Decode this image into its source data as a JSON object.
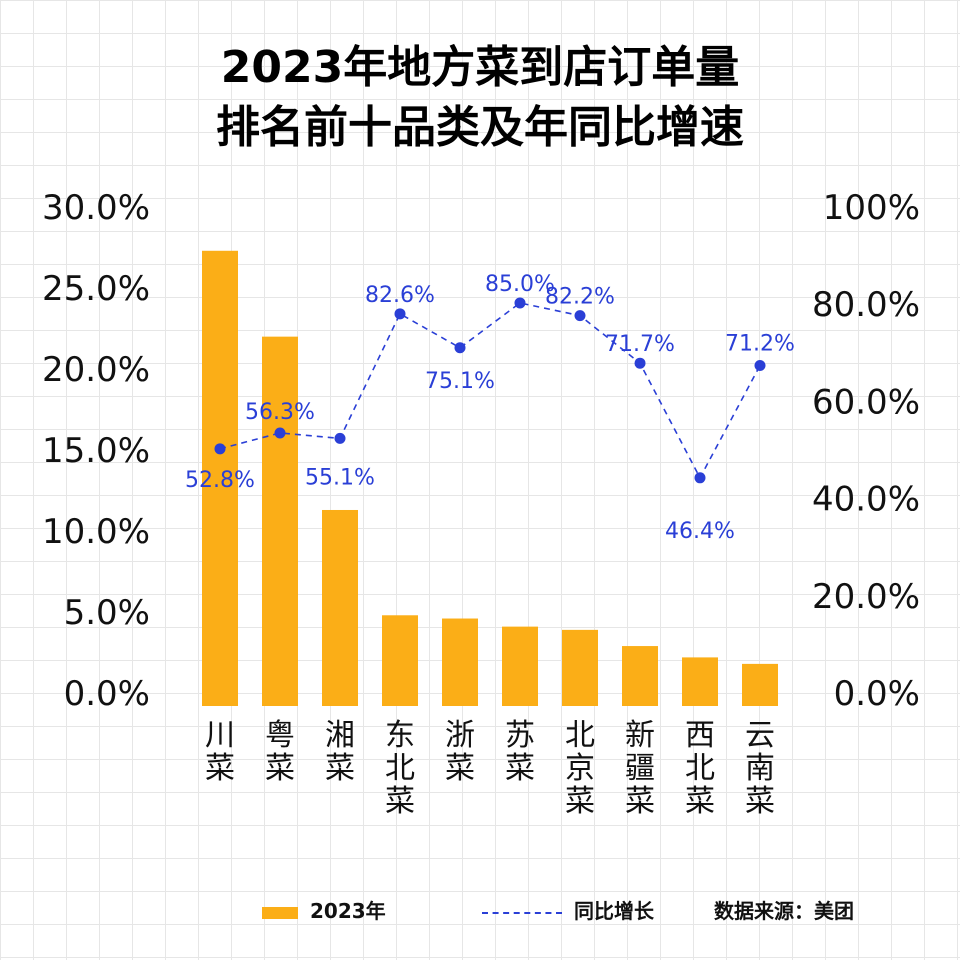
{
  "chart_data": {
    "type": "bar+line",
    "title": [
      "2023年地方菜到店订单量",
      "排名前十品类及年同比增速"
    ],
    "categories": [
      "川菜",
      "粤菜",
      "湘菜",
      "东北菜",
      "浙菜",
      "苏菜",
      "北京菜",
      "新疆菜",
      "西北菜",
      "云南菜"
    ],
    "series": [
      {
        "name": "2023年",
        "type": "bar",
        "axis": "left",
        "color": "#FBAE17",
        "values": [
          28.1,
          22.8,
          12.1,
          5.6,
          5.4,
          4.9,
          4.7,
          3.7,
          3.0,
          2.6
        ]
      },
      {
        "name": "同比增长",
        "type": "line",
        "axis": "right",
        "color": "#2A3FD6",
        "style": "dashed",
        "values": [
          52.8,
          56.3,
          55.1,
          82.6,
          75.1,
          85.0,
          82.2,
          71.7,
          46.4,
          71.2
        ],
        "labels": [
          "52.8%",
          "56.3%",
          "55.1%",
          "82.6%",
          "75.1%",
          "85.0%",
          "82.2%",
          "71.7%",
          "46.4%",
          "71.2%"
        ]
      }
    ],
    "left_axis": {
      "ylim": [
        0,
        30
      ],
      "ticks": [
        "0.0%",
        "5.0%",
        "10.0%",
        "15.0%",
        "20.0%",
        "25.0%",
        "30.0%"
      ]
    },
    "right_axis": {
      "ylim": [
        0,
        100
      ],
      "ticks": [
        "0.0%",
        "20.0%",
        "40.0%",
        "60.0%",
        "80.0%",
        "100%"
      ]
    },
    "grid": true,
    "legend_placement": "bottom"
  },
  "source": "数据来源：美团"
}
